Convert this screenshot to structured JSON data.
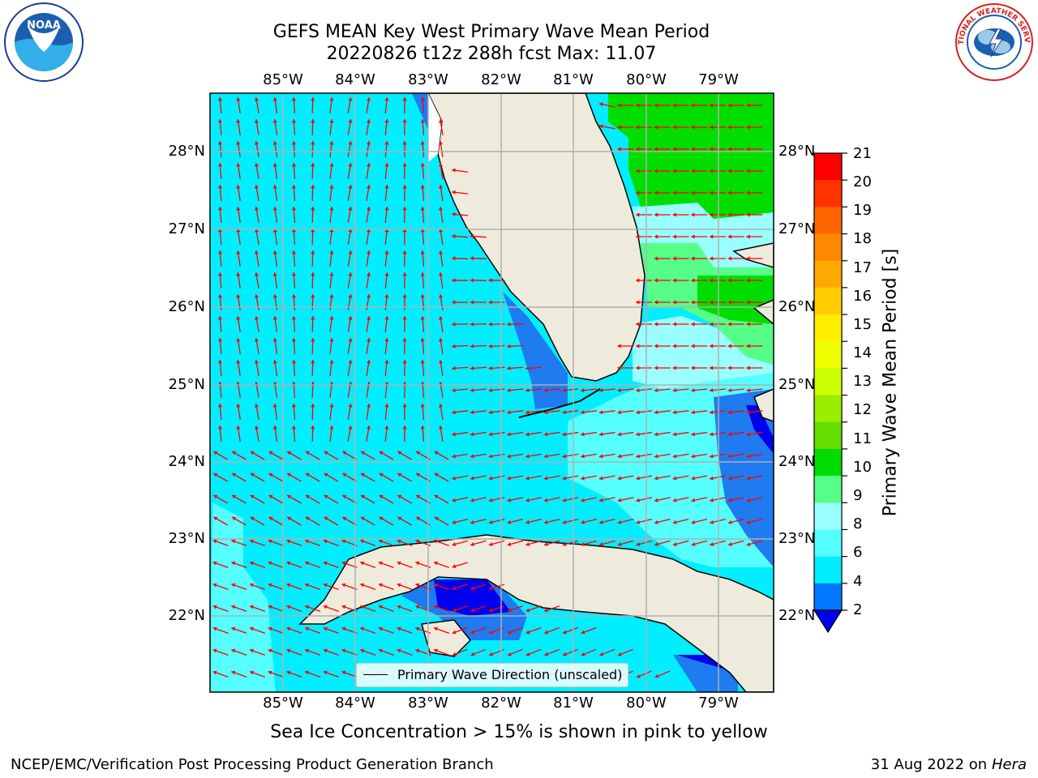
{
  "title": {
    "line1": "GEFS MEAN Key West Primary Wave Mean Period",
    "line2": "20220826 t12z 288h fcst   Max: 11.07"
  },
  "map": {
    "lon_ticks": [
      "85°W",
      "84°W",
      "83°W",
      "82°W",
      "81°W",
      "80°W",
      "79°W"
    ],
    "lat_ticks": [
      "28°N",
      "27°N",
      "26°N",
      "25°N",
      "24°N",
      "23°N",
      "22°N"
    ],
    "legend_label": "Primary Wave Direction (unscaled)",
    "vector_color": "#ff0000",
    "land_color": "#eeebdc"
  },
  "colorbar": {
    "label": "Primary Wave Mean Period [s]",
    "ticks": [
      "21",
      "20",
      "19",
      "18",
      "17",
      "16",
      "15",
      "14",
      "13",
      "12",
      "11",
      "10",
      "9",
      "8",
      "6",
      "4",
      "2"
    ],
    "colors": [
      "#ff0000",
      "#ff3300",
      "#ff6600",
      "#ff8800",
      "#ffaa00",
      "#ffcc00",
      "#ffee00",
      "#eeff00",
      "#ccff00",
      "#99ee00",
      "#66dd00",
      "#00dd00",
      "#55ff88",
      "#99ffff",
      "#55ffff",
      "#00eeff",
      "#0077ff"
    ],
    "under_color": "#0000ee"
  },
  "bottom_note": "Sea Ice Concentration > 15% is shown in pink to yellow",
  "footer": {
    "left": "NCEP/EMC/Verification Post Processing Product Generation Branch",
    "right_date": "31 Aug 2022 on",
    "right_host": "Hera"
  },
  "logos": {
    "noaa_text": "NOAA",
    "nws_text": "NATIONAL WEATHER SERVICE"
  }
}
